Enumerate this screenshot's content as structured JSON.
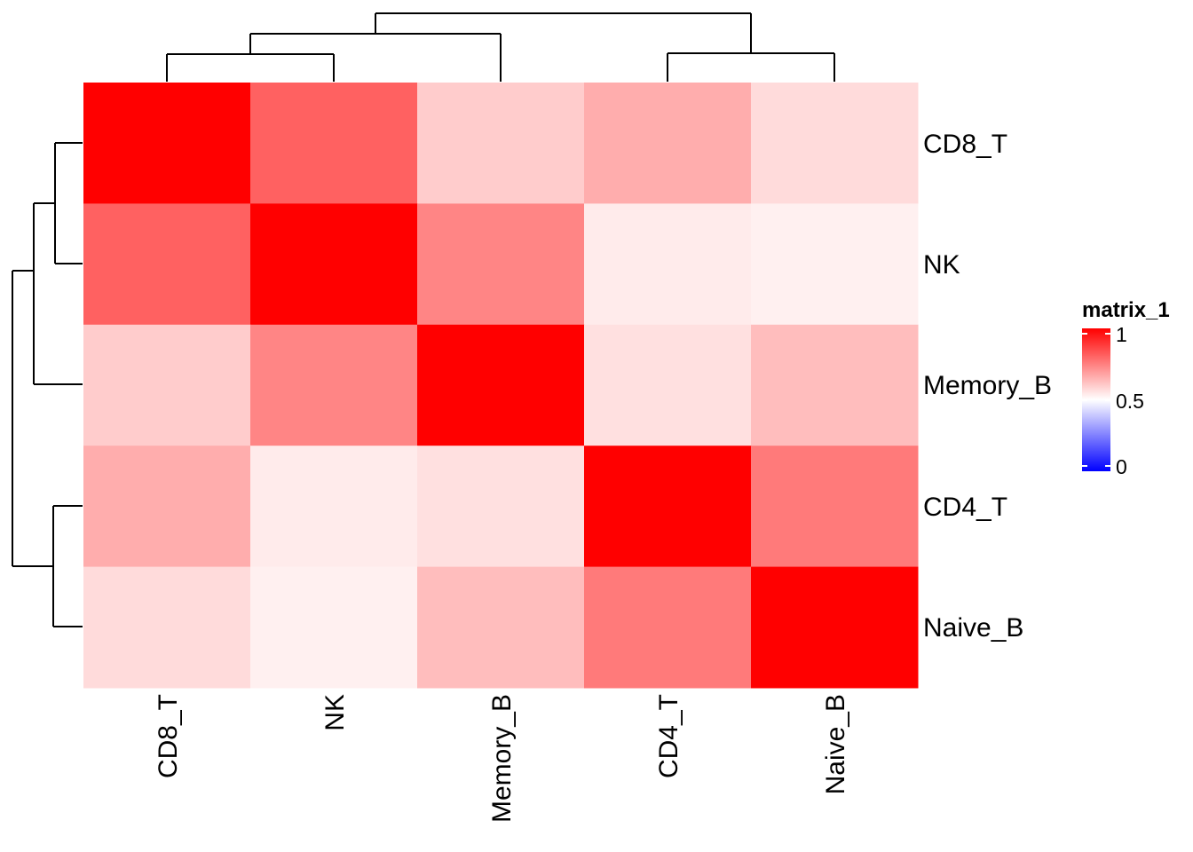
{
  "chart_data": {
    "type": "heatmap",
    "title": "",
    "rows": [
      "CD8_T",
      "NK",
      "Memory_B",
      "CD4_T",
      "Naive_B"
    ],
    "columns": [
      "CD8_T",
      "NK",
      "Memory_B",
      "CD4_T",
      "Naive_B"
    ],
    "values": [
      [
        1.0,
        0.81,
        0.6,
        0.66,
        0.57
      ],
      [
        0.81,
        1.0,
        0.74,
        0.54,
        0.53
      ],
      [
        0.6,
        0.74,
        1.0,
        0.56,
        0.63
      ],
      [
        0.66,
        0.54,
        0.56,
        1.0,
        0.76
      ],
      [
        0.57,
        0.53,
        0.63,
        0.76,
        1.0
      ]
    ],
    "legend": {
      "title": "matrix_1",
      "ticks": [
        "1",
        "0.5",
        "0"
      ],
      "min": 0,
      "mid": 0.5,
      "max": 1,
      "colors": {
        "low": "#0000ff",
        "mid": "#ffffff",
        "high": "#ff0000"
      }
    },
    "row_dendrogram": true,
    "column_dendrogram": true
  }
}
